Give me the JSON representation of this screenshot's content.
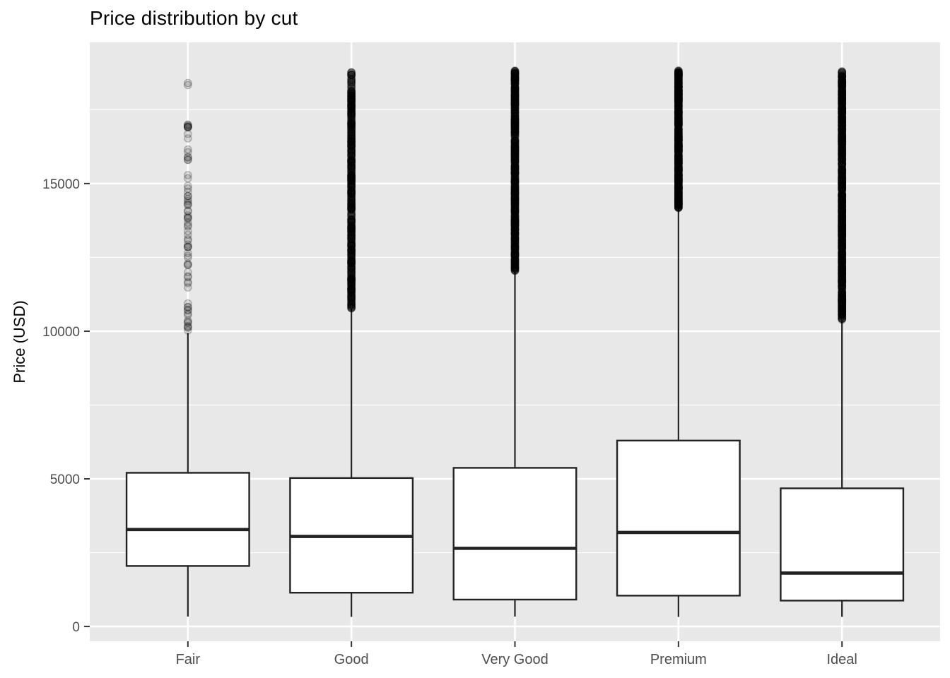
{
  "chart_data": {
    "type": "boxplot",
    "title": "Price distribution by cut",
    "xlabel": "",
    "ylabel": "Price (USD)",
    "categories": [
      "Fair",
      "Good",
      "Very Good",
      "Premium",
      "Ideal"
    ],
    "y_tick_labels": [
      "0",
      "5000",
      "10000",
      "15000"
    ],
    "y_ticks": [
      0,
      5000,
      10000,
      15000
    ],
    "y_minor_ticks": [
      2500,
      7500,
      12500,
      17500
    ],
    "ylim": [
      -500,
      19780
    ],
    "grid": "major and minor horizontal white lines, vertical white line at each category",
    "legend": "none",
    "series": [
      {
        "cut": "Fair",
        "whisker_low": 337,
        "q1": 2050,
        "median": 3282,
        "q3": 5205,
        "whisker_high": 9940,
        "outliers": {
          "min": 9940,
          "max": 18574,
          "approx_count": 72,
          "distribution": "sparse",
          "skew": 1.25,
          "seed": 11
        }
      },
      {
        "cut": "Good",
        "whisker_low": 327,
        "q1": 1145,
        "median": 3050,
        "q3": 5028,
        "whisker_high": 10760,
        "outliers": {
          "min": 10760,
          "max": 18788,
          "approx_count": 600,
          "distribution": "dense",
          "skew": 1.0,
          "seed": 22
        }
      },
      {
        "cut": "Very Good",
        "whisker_low": 336,
        "q1": 912,
        "median": 2648,
        "q3": 5373,
        "whisker_high": 12010,
        "outliers": {
          "min": 12010,
          "max": 18818,
          "approx_count": 700,
          "distribution": "dense",
          "skew": 1.0,
          "seed": 33
        }
      },
      {
        "cut": "Premium",
        "whisker_low": 326,
        "q1": 1046,
        "median": 3185,
        "q3": 6296,
        "whisker_high": 14160,
        "outliers": {
          "min": 14160,
          "max": 18823,
          "approx_count": 650,
          "distribution": "dense",
          "skew": 1.0,
          "seed": 44
        }
      },
      {
        "cut": "Ideal",
        "whisker_low": 326,
        "q1": 878,
        "median": 1810,
        "q3": 4679,
        "whisker_high": 10376,
        "outliers": {
          "min": 10376,
          "max": 18806,
          "approx_count": 900,
          "distribution": "dense",
          "skew": 1.0,
          "seed": 55
        }
      }
    ],
    "style": {
      "panel_bg": "#E8E8E8",
      "grid_color": "#FFFFFF",
      "box_fill": "#FFFFFF",
      "box_stroke": "#222222",
      "tick_label_color": "#4D4D4D",
      "tick_mark_color": "#333333",
      "title_color": "#000000",
      "outlier_color": "#000000"
    }
  }
}
